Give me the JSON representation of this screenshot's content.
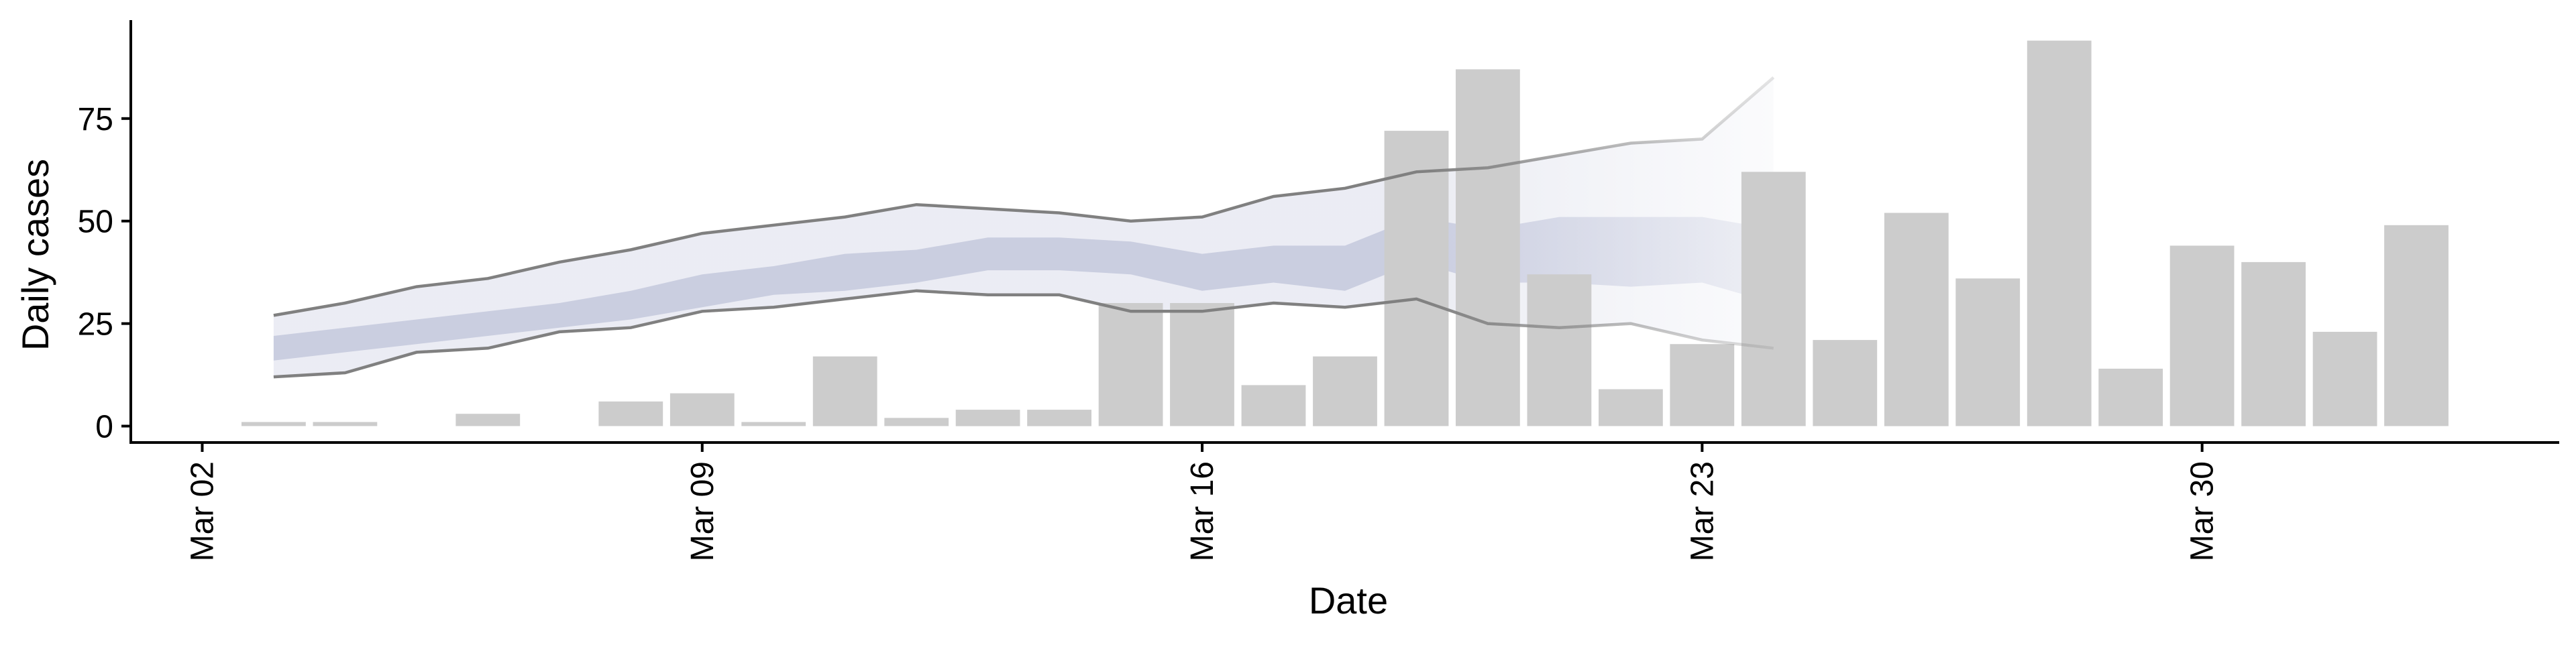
{
  "chart_data": {
    "type": "bar",
    "xlabel": "Date",
    "ylabel": "Daily cases",
    "x_ticks": [
      "Mar 02",
      "Mar 09",
      "Mar 16",
      "Mar 23",
      "Mar 30"
    ],
    "y_ticks": [
      0,
      25,
      50,
      75
    ],
    "ylim": [
      -4,
      99
    ],
    "xlim": [
      "2020-03-01",
      "2020-04-04"
    ],
    "grid": false,
    "legend": "none",
    "bars": {
      "color": "#cccccc",
      "dates": [
        "2020-03-03",
        "2020-03-04",
        "2020-03-06",
        "2020-03-08",
        "2020-03-09",
        "2020-03-10",
        "2020-03-11",
        "2020-03-12",
        "2020-03-13",
        "2020-03-14",
        "2020-03-15",
        "2020-03-16",
        "2020-03-17",
        "2020-03-18",
        "2020-03-19",
        "2020-03-20",
        "2020-03-21",
        "2020-03-22",
        "2020-03-23",
        "2020-03-24",
        "2020-03-25",
        "2020-03-26",
        "2020-03-27",
        "2020-03-28",
        "2020-03-29",
        "2020-03-30",
        "2020-03-31",
        "2020-04-01",
        "2020-04-02"
      ],
      "values": [
        1,
        1,
        3,
        6,
        8,
        1,
        17,
        2,
        4,
        4,
        30,
        30,
        10,
        17,
        72,
        87,
        37,
        9,
        20,
        62,
        21,
        52,
        36,
        94,
        14,
        44,
        40,
        23,
        49
      ]
    },
    "estimate": {
      "dates": [
        "2020-03-03",
        "2020-03-04",
        "2020-03-05",
        "2020-03-06",
        "2020-03-07",
        "2020-03-08",
        "2020-03-09",
        "2020-03-10",
        "2020-03-11",
        "2020-03-12",
        "2020-03-13",
        "2020-03-14",
        "2020-03-15",
        "2020-03-16",
        "2020-03-17",
        "2020-03-18",
        "2020-03-19",
        "2020-03-20",
        "2020-03-21",
        "2020-03-22",
        "2020-03-23",
        "2020-03-24"
      ],
      "upper90": [
        27,
        30,
        34,
        36,
        40,
        43,
        47,
        49,
        51,
        54,
        53,
        52,
        50,
        51,
        56,
        58,
        62,
        63,
        66,
        69,
        70,
        85
      ],
      "lower90": [
        12,
        13,
        18,
        19,
        23,
        24,
        28,
        29,
        31,
        33,
        32,
        32,
        28,
        28,
        30,
        29,
        31,
        25,
        24,
        25,
        21,
        19
      ],
      "upper50": [
        22,
        24,
        26,
        28,
        30,
        33,
        37,
        39,
        42,
        43,
        46,
        46,
        45,
        42,
        44,
        44,
        51,
        48,
        51,
        51,
        51,
        48
      ],
      "lower50": [
        16,
        18,
        20,
        22,
        24,
        26,
        29,
        32,
        33,
        35,
        38,
        38,
        37,
        33,
        35,
        33,
        40,
        35,
        35,
        34,
        35,
        30
      ],
      "band_color": "#b8bdd6",
      "line_color": "#808080",
      "fade_start": "2020-03-19"
    }
  }
}
